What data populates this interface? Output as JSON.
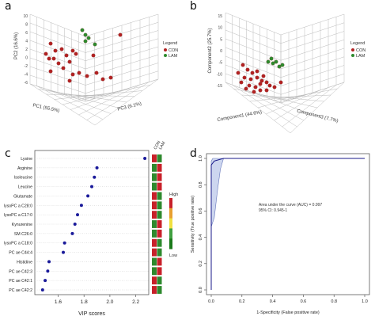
{
  "panels": {
    "a": {
      "letter": "a",
      "z_ticks": [
        "10",
        "8",
        "6",
        "4",
        "2",
        "0",
        "-2",
        "-4",
        "-6"
      ],
      "zlabel": "PC2 (16.6%)",
      "xlabel": "PC1 (55.5%)",
      "ylabel": "PC3 (6.1%)",
      "legend_title": "Legend",
      "legend_entries": [
        {
          "label": "CON",
          "color": "#b22222"
        },
        {
          "label": "LAM",
          "color": "#2e8b2e"
        }
      ]
    },
    "b": {
      "letter": "b",
      "z_ticks": [
        "15",
        "10",
        "5",
        "0",
        "-5",
        "-10",
        "-15"
      ],
      "zlabel": "Component2 (25.7%)",
      "xlabel": "Component1 (44.6%)",
      "ylabel": "Component3 (7.7%)",
      "legend_title": "Legend",
      "legend_entries": [
        {
          "label": "CON",
          "color": "#b22222"
        },
        {
          "label": "LAM",
          "color": "#2e8b2e"
        }
      ]
    },
    "c": {
      "letter": "c"
    },
    "d": {
      "letter": "d"
    }
  },
  "chart_data": [
    {
      "type": "scatter",
      "panel": "a",
      "series": [
        {
          "name": "CON",
          "color": "#b22222",
          "count": 22
        },
        {
          "name": "LAM",
          "color": "#2e8b2e",
          "count": 5
        }
      ],
      "zlim": [
        -6,
        10
      ]
    },
    {
      "type": "scatter",
      "panel": "b",
      "series": [
        {
          "name": "CON",
          "color": "#b22222",
          "count": 22
        },
        {
          "name": "LAM",
          "color": "#2e8b2e",
          "count": 6
        }
      ],
      "zlim": [
        -15,
        15
      ]
    },
    {
      "type": "scatter",
      "panel": "c",
      "xlabel": "VIP scores",
      "xlim": [
        1.42,
        2.3
      ],
      "xticks": [
        1.6,
        1.8,
        2.0,
        2.2
      ],
      "point_color": "#1a1a9a",
      "categories": [
        "Lysine",
        "Arginine",
        "Isoleucine",
        "Leucine",
        "Glutamate",
        "lysoPC a C28:0",
        "lysoPC a C17:0",
        "Kynurenine",
        "SM C26:0",
        "lysoPC a C18:0",
        "PC ae C44:4",
        "Histidine",
        "PC ae C42:3",
        "PC ae C42:1",
        "PC ae C42:2"
      ],
      "values": [
        2.27,
        1.9,
        1.88,
        1.86,
        1.83,
        1.78,
        1.75,
        1.73,
        1.71,
        1.65,
        1.64,
        1.53,
        1.52,
        1.5,
        1.48
      ],
      "heatmap_columns": [
        "CON",
        "LAM"
      ],
      "heatmap_colors": [
        [
          "#c8202a",
          "#2e8a2e"
        ],
        [
          "#2e8a2e",
          "#c8202a"
        ],
        [
          "#2e8a2e",
          "#c8202a"
        ],
        [
          "#2e8a2e",
          "#c8202a"
        ],
        [
          "#c8202a",
          "#2e8a2e"
        ],
        [
          "#c8202a",
          "#2e8a2e"
        ],
        [
          "#c8202a",
          "#2e8a2e"
        ],
        [
          "#2e8a2e",
          "#c8202a"
        ],
        [
          "#2e8a2e",
          "#c8202a"
        ],
        [
          "#c8202a",
          "#2e8a2e"
        ],
        [
          "#c8202a",
          "#2e8a2e"
        ],
        [
          "#2e8a2e",
          "#c8202a"
        ],
        [
          "#2e8a2e",
          "#c8202a"
        ],
        [
          "#c8202a",
          "#2e8a2e"
        ],
        [
          "#c8202a",
          "#2e8a2e"
        ]
      ],
      "colorbar": {
        "high_label": "High",
        "low_label": "Low",
        "colors": [
          "#c8202a",
          "#e8a030",
          "#f0e040",
          "#40a040",
          "#1a7a1a"
        ]
      }
    },
    {
      "type": "line",
      "panel": "d",
      "xlabel": "1-Specificity (False positive rate)",
      "ylabel": "Sensitivity (True positive rate)",
      "xlim": [
        0,
        1
      ],
      "ylim": [
        0,
        1
      ],
      "xticks": [
        "0.0",
        "0.2",
        "0.4",
        "0.6",
        "0.8",
        "1.0"
      ],
      "yticks": [
        "0.0",
        "0.2",
        "0.4",
        "0.6",
        "0.8",
        "1.0"
      ],
      "roc": {
        "x": [
          0.0,
          0.0,
          0.02,
          0.05,
          0.08,
          1.0
        ],
        "y": [
          0.0,
          0.95,
          0.98,
          0.99,
          1.0,
          1.0
        ]
      },
      "ci_upper": {
        "x": [
          0.0,
          0.0,
          0.01,
          0.03,
          0.05,
          1.0
        ],
        "y": [
          0.0,
          0.98,
          1.0,
          1.0,
          1.0,
          1.0
        ]
      },
      "ci_lower": {
        "x": [
          0.0,
          0.0,
          0.02,
          0.04,
          0.06,
          0.08,
          1.0
        ],
        "y": [
          0.0,
          0.48,
          0.55,
          0.75,
          0.92,
          1.0,
          1.0
        ]
      },
      "annotation_auc": "Area under the curve (AUC) = 0.997",
      "annotation_ci": "95% CI: 0.945-1"
    }
  ]
}
